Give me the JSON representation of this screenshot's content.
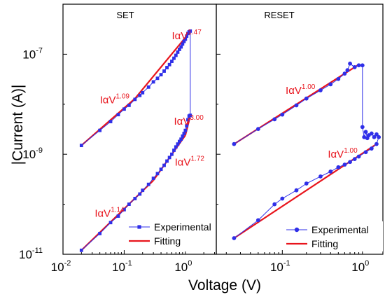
{
  "figure": {
    "ylabel": "|Current (A)|",
    "xlabel": "Voltage (V)"
  },
  "chart_data": [
    {
      "type": "line",
      "title": "SET",
      "x_scale": "log",
      "y_scale": "log",
      "xlim": [
        0.01,
        3.2
      ],
      "ylim": [
        1e-11,
        1e-06
      ],
      "x_ticks": [
        {
          "value": 0.01,
          "base": "10",
          "exp": "-2"
        },
        {
          "value": 0.1,
          "base": "10",
          "exp": "-1"
        },
        {
          "value": 1,
          "base": "10",
          "exp": "0"
        }
      ],
      "y_ticks": [
        {
          "value": 1e-11,
          "base": "10",
          "exp": "-11"
        },
        {
          "value": 1e-09,
          "base": "10",
          "exp": "-9"
        },
        {
          "value": 1e-07,
          "base": "10",
          "exp": "-7"
        }
      ],
      "colors": {
        "experimental": "#2f2fe8",
        "fitting": "#e8141c"
      },
      "series": [
        {
          "name": "Experimental",
          "role": "experimental",
          "marker": "square",
          "x": [
            0.02,
            0.04,
            0.06,
            0.08,
            0.1,
            0.12,
            0.15,
            0.18,
            0.2,
            0.25,
            0.3,
            0.35,
            0.4,
            0.45,
            0.5,
            0.55,
            0.6,
            0.65,
            0.7,
            0.75,
            0.8,
            0.85,
            0.9,
            0.95,
            1.0,
            1.05,
            1.1,
            1.15,
            1.2,
            1.2,
            1.15,
            1.1,
            1.05,
            1.0,
            0.95,
            0.9,
            0.85,
            0.8,
            0.75,
            0.7,
            0.65,
            0.6,
            0.55,
            0.5,
            0.45,
            0.4,
            0.35,
            0.3,
            0.25,
            0.2,
            0.18,
            0.15,
            0.12,
            0.1,
            0.08,
            0.06,
            0.04,
            0.02
          ],
          "y": [
            1.2e-11,
            2.6e-11,
            4.3e-11,
            5.8e-11,
            7.8e-11,
            1e-10,
            1.3e-10,
            1.6e-10,
            1.9e-10,
            2.5e-10,
            3.3e-10,
            4.1e-10,
            5e-10,
            6e-10,
            7.3e-10,
            8.6e-10,
            1e-09,
            1.2e-09,
            1.4e-09,
            1.6e-09,
            1.8e-09,
            2e-09,
            2.3e-09,
            2.6e-09,
            3e-09,
            3.7e-09,
            4.9e-09,
            5.8e-09,
            6e-09,
            2.9e-07,
            2.8e-07,
            2.6e-07,
            2.3e-07,
            2e-07,
            1.8e-07,
            1.6e-07,
            1.4e-07,
            1.25e-07,
            1.1e-07,
            9.5e-08,
            8.3e-08,
            7.2e-08,
            6.2e-08,
            5.4e-08,
            4.6e-08,
            3.9e-08,
            3.3e-08,
            2.8e-08,
            2.2e-08,
            1.7e-08,
            1.5e-08,
            1.25e-08,
            9.5e-09,
            8e-09,
            6.2e-09,
            4.5e-09,
            3e-09,
            1.5e-09
          ]
        },
        {
          "name": "Fitting",
          "role": "fitting",
          "marker": "none",
          "segments": [
            {
              "x": [
                0.02,
                0.3
              ],
              "y": [
                1.2e-11,
                3e-10
              ]
            },
            {
              "x": [
                0.3,
                1.0
              ],
              "y": [
                3e-10,
                2.4e-09
              ]
            },
            {
              "x": [
                1.0,
                1.2
              ],
              "y": [
                2.4e-09,
                5.8e-09
              ]
            },
            {
              "x": [
                0.02,
                0.15
              ],
              "y": [
                1.5e-09,
                1.3e-08
              ]
            },
            {
              "x": [
                0.15,
                1.25
              ],
              "y": [
                1.3e-08,
                3e-07
              ]
            }
          ]
        }
      ],
      "annotations": [
        {
          "base": "IαV",
          "exp": "1.47",
          "x": 0.6,
          "y": 2e-07
        },
        {
          "base": "IαV",
          "exp": "1.09",
          "x": 0.04,
          "y": 1.05e-08
        },
        {
          "base": "IαV",
          "exp": "3.00",
          "x": 0.65,
          "y": 3.9e-09
        },
        {
          "base": "IαV",
          "exp": "1.72",
          "x": 0.67,
          "y": 5.9e-10
        },
        {
          "base": "IαV",
          "exp": "1.14",
          "x": 0.033,
          "y": 5.6e-11
        }
      ],
      "legend": {
        "placement": "bottom-right",
        "entries": [
          "Experimental",
          "Fitting"
        ]
      }
    },
    {
      "type": "line",
      "title": "RESET",
      "x_scale": "log",
      "y_scale": "log",
      "xlim": [
        0.015,
        1.8
      ],
      "ylim": [
        1e-11,
        1e-06
      ],
      "x_ticks": [
        {
          "value": 0.1,
          "base": "10",
          "exp": "-1"
        },
        {
          "value": 1,
          "base": "10",
          "exp": "0"
        }
      ],
      "colors": {
        "experimental": "#2f2fe8",
        "fitting": "#e8141c"
      },
      "series": [
        {
          "name": "Experimental",
          "role": "experimental",
          "marker": "circle",
          "x": [
            0.025,
            0.05,
            0.08,
            0.1,
            0.15,
            0.2,
            0.3,
            0.4,
            0.5,
            0.6,
            0.65,
            0.7,
            0.8,
            0.9,
            1.0,
            1.0,
            1.05,
            1.1,
            1.15,
            1.2,
            1.3,
            1.4,
            1.5,
            1.6,
            1.5,
            1.3,
            1.1,
            0.9,
            0.8,
            0.7,
            0.6,
            0.5,
            0.4,
            0.3,
            0.2,
            0.15,
            0.1,
            0.08,
            0.05,
            0.025
          ],
          "y": [
            1.6e-09,
            3.2e-09,
            5e-09,
            6.2e-09,
            9.5e-09,
            1.3e-08,
            1.9e-08,
            2.5e-08,
            3.2e-08,
            4.1e-08,
            4.8e-08,
            6.5e-08,
            5.5e-08,
            6e-08,
            6e-08,
            3.5e-09,
            2.2e-09,
            2.8e-09,
            2.1e-09,
            2.4e-09,
            2.6e-09,
            2.2e-09,
            2.5e-09,
            2.2e-09,
            1.6e-09,
            1.3e-09,
            1.1e-09,
            9e-10,
            8e-10,
            7e-10,
            6.2e-10,
            5.5e-10,
            4.5e-10,
            3.6e-10,
            2.6e-10,
            1.9e-10,
            1.3e-10,
            1e-10,
            4.8e-11,
            2.1e-11
          ]
        },
        {
          "name": "Fitting",
          "role": "fitting",
          "marker": "none",
          "segments": [
            {
              "x": [
                0.025,
                0.9
              ],
              "y": [
                1.6e-09,
                6.2e-08
              ]
            },
            {
              "x": [
                0.025,
                1.5
              ],
              "y": [
                2.1e-11,
                1.6e-09
              ]
            }
          ]
        }
      ],
      "annotations": [
        {
          "base": "IαV",
          "exp": "1.00",
          "x": 0.11,
          "y": 1.6e-08
        },
        {
          "base": "IαV",
          "exp": "1.00",
          "x": 0.37,
          "y": 8.6e-10
        }
      ],
      "legend": {
        "placement": "bottom-right",
        "entries": [
          "Experimental",
          "Fitting"
        ]
      }
    }
  ]
}
